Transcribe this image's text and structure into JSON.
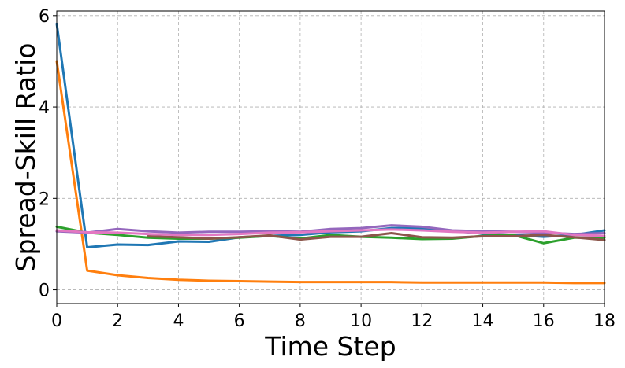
{
  "chart_data": {
    "type": "line",
    "xlabel": "Time Step",
    "ylabel": "Spread-Skill Ratio",
    "xlim": [
      0,
      18
    ],
    "ylim": [
      -0.3,
      6.1
    ],
    "xticks": [
      0,
      2,
      4,
      6,
      8,
      10,
      12,
      14,
      16,
      18
    ],
    "yticks": [
      0,
      2,
      4,
      6
    ],
    "grid": true,
    "x": [
      0,
      1,
      2,
      3,
      4,
      5,
      6,
      7,
      8,
      9,
      10,
      11,
      12,
      13,
      14,
      15,
      16,
      17,
      18
    ],
    "series": [
      {
        "color": "#1f77b4",
        "values": [
          5.82,
          0.93,
          0.99,
          0.98,
          1.06,
          1.05,
          1.15,
          1.18,
          1.2,
          1.26,
          1.28,
          1.35,
          1.35,
          1.29,
          1.23,
          1.2,
          1.16,
          1.2,
          1.3
        ]
      },
      {
        "color": "#ff7f0e",
        "values": [
          5.0,
          0.42,
          0.32,
          0.26,
          0.22,
          0.2,
          0.19,
          0.18,
          0.17,
          0.17,
          0.17,
          0.17,
          0.16,
          0.16,
          0.16,
          0.16,
          0.16,
          0.15,
          0.15
        ]
      },
      {
        "color": "#2ca02c",
        "values": [
          1.38,
          1.25,
          1.2,
          1.14,
          1.12,
          1.12,
          1.14,
          1.18,
          1.12,
          1.2,
          1.16,
          1.14,
          1.11,
          1.12,
          1.18,
          1.2,
          1.02,
          1.14,
          1.14
        ]
      },
      {
        "color": "#8c564b",
        "values": [
          null,
          null,
          null,
          1.17,
          1.15,
          1.12,
          1.15,
          1.19,
          1.1,
          1.16,
          1.16,
          1.24,
          1.15,
          1.14,
          1.17,
          1.17,
          1.2,
          1.15,
          1.09
        ]
      },
      {
        "color": "#9467bd",
        "values": [
          1.28,
          1.25,
          1.33,
          1.28,
          1.25,
          1.27,
          1.27,
          1.28,
          1.27,
          1.33,
          1.35,
          1.41,
          1.38,
          1.3,
          1.28,
          1.27,
          1.25,
          1.22,
          1.24
        ]
      },
      {
        "color": "#e377c2",
        "values": [
          1.3,
          1.26,
          1.25,
          1.22,
          1.2,
          1.2,
          1.22,
          1.25,
          1.26,
          1.28,
          1.3,
          1.32,
          1.3,
          1.27,
          1.25,
          1.27,
          1.28,
          1.2,
          1.18
        ]
      }
    ]
  }
}
